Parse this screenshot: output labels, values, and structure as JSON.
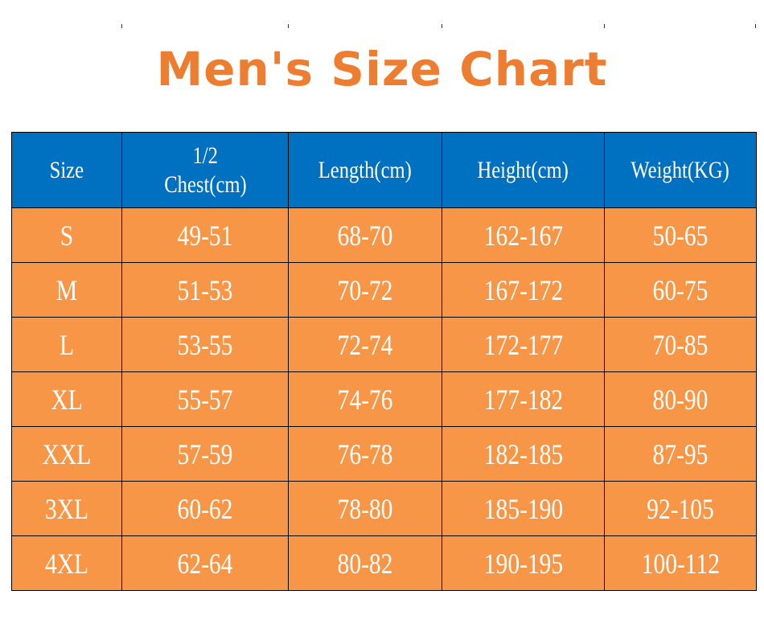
{
  "title": "Men's Size Chart",
  "colors": {
    "title": "#ed7d31",
    "header": "#0070c0",
    "row": "#f79646",
    "text": "#ffffff"
  },
  "table": {
    "headers": [
      "Size",
      "1/2\nChest(cm)",
      "Length(cm)",
      "Height(cm)",
      "Weight(KG)"
    ],
    "header_chest_line1": "1/2",
    "header_chest_line2": "Chest(cm)",
    "rows": [
      [
        "S",
        "49-51",
        "68-70",
        "162-167",
        "50-65"
      ],
      [
        "M",
        "51-53",
        "70-72",
        "167-172",
        "60-75"
      ],
      [
        "L",
        "53-55",
        "72-74",
        "172-177",
        "70-85"
      ],
      [
        "XL",
        "55-57",
        "74-76",
        "177-182",
        "80-90"
      ],
      [
        "XXL",
        "57-59",
        "76-78",
        "182-185",
        "87-95"
      ],
      [
        "3XL",
        "60-62",
        "78-80",
        "185-190",
        "92-105"
      ],
      [
        "4XL",
        "62-64",
        "80-82",
        "190-195",
        "100-112"
      ]
    ]
  }
}
